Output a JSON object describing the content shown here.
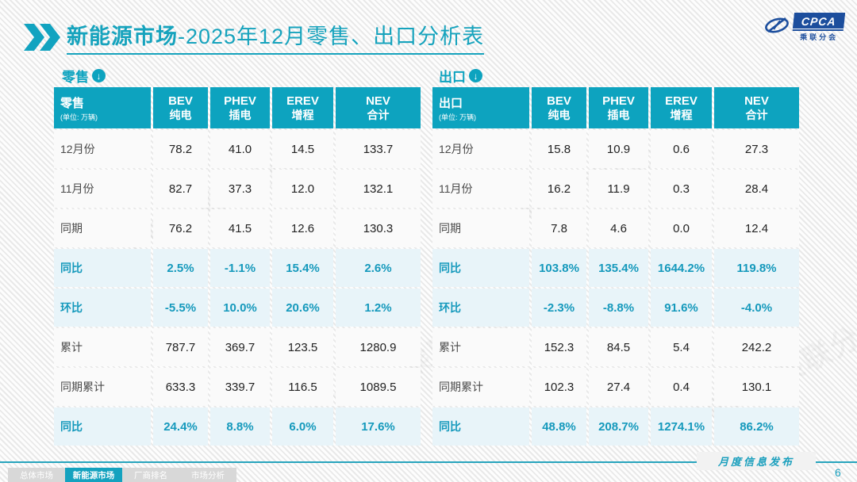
{
  "slide": {
    "title": {
      "highlight": "新能源市场",
      "rest": "-2025年12月零售、出口分析表"
    },
    "logo": {
      "acronym": "CPCA",
      "cn": "乘联分会"
    },
    "watermark": "CPCA 乘联分会",
    "footer": {
      "note": "月度信息发布",
      "page": "6"
    },
    "tabs": [
      {
        "label": "总体市场",
        "active": false
      },
      {
        "label": "新能源市场",
        "active": true
      },
      {
        "label": "厂商排名",
        "active": false
      },
      {
        "label": "市场分析",
        "active": false
      }
    ]
  },
  "icons": {
    "chevrons": "double-right-chevron",
    "section_arrow": "↓"
  },
  "colors": {
    "teal": "#0da3bf",
    "highlight_row_bg": "#e8f4f9",
    "highlight_text": "#1599bc",
    "logo_blue": "#1c4e9d"
  },
  "tables": [
    {
      "section": "零售",
      "corner": {
        "title": "零售",
        "unit": "(单位: 万辆)"
      },
      "columns": [
        {
          "en": "BEV",
          "cn": "纯电"
        },
        {
          "en": "PHEV",
          "cn": "插电"
        },
        {
          "en": "EREV",
          "cn": "增程"
        },
        {
          "en": "NEV",
          "cn": "合计"
        }
      ],
      "rows": [
        {
          "label": "12月份",
          "values": [
            "78.2",
            "41.0",
            "14.5",
            "133.7"
          ],
          "highlight": false
        },
        {
          "label": "11月份",
          "values": [
            "82.7",
            "37.3",
            "12.0",
            "132.1"
          ],
          "highlight": false
        },
        {
          "label": "同期",
          "values": [
            "76.2",
            "41.5",
            "12.6",
            "130.3"
          ],
          "highlight": false
        },
        {
          "label": "同比",
          "values": [
            "2.5%",
            "-1.1%",
            "15.4%",
            "2.6%"
          ],
          "highlight": true
        },
        {
          "label": "环比",
          "values": [
            "-5.5%",
            "10.0%",
            "20.6%",
            "1.2%"
          ],
          "highlight": true
        },
        {
          "label": "累计",
          "values": [
            "787.7",
            "369.7",
            "123.5",
            "1280.9"
          ],
          "highlight": false
        },
        {
          "label": "同期累计",
          "values": [
            "633.3",
            "339.7",
            "116.5",
            "1089.5"
          ],
          "highlight": false
        },
        {
          "label": "同比",
          "values": [
            "24.4%",
            "8.8%",
            "6.0%",
            "17.6%"
          ],
          "highlight": true
        }
      ]
    },
    {
      "section": "出口",
      "corner": {
        "title": "出口",
        "unit": "(单位: 万辆)"
      },
      "columns": [
        {
          "en": "BEV",
          "cn": "纯电"
        },
        {
          "en": "PHEV",
          "cn": "插电"
        },
        {
          "en": "EREV",
          "cn": "增程"
        },
        {
          "en": "NEV",
          "cn": "合计"
        }
      ],
      "rows": [
        {
          "label": "12月份",
          "values": [
            "15.8",
            "10.9",
            "0.6",
            "27.3"
          ],
          "highlight": false
        },
        {
          "label": "11月份",
          "values": [
            "16.2",
            "11.9",
            "0.3",
            "28.4"
          ],
          "highlight": false
        },
        {
          "label": "同期",
          "values": [
            "7.8",
            "4.6",
            "0.0",
            "12.4"
          ],
          "highlight": false
        },
        {
          "label": "同比",
          "values": [
            "103.8%",
            "135.4%",
            "1644.2%",
            "119.8%"
          ],
          "highlight": true
        },
        {
          "label": "环比",
          "values": [
            "-2.3%",
            "-8.8%",
            "91.6%",
            "-4.0%"
          ],
          "highlight": true
        },
        {
          "label": "累计",
          "values": [
            "152.3",
            "84.5",
            "5.4",
            "242.2"
          ],
          "highlight": false
        },
        {
          "label": "同期累计",
          "values": [
            "102.3",
            "27.4",
            "0.4",
            "130.1"
          ],
          "highlight": false
        },
        {
          "label": "同比",
          "values": [
            "48.8%",
            "208.7%",
            "1274.1%",
            "86.2%"
          ],
          "highlight": true
        }
      ]
    }
  ],
  "chart_data": [
    {
      "type": "table",
      "title": "零售 (单位: 万辆)",
      "columns": [
        "BEV纯电",
        "PHEV插电",
        "EREV增程",
        "NEV合计"
      ],
      "row_labels": [
        "12月份",
        "11月份",
        "同期",
        "同比",
        "环比",
        "累计",
        "同期累计",
        "同比(累计)"
      ],
      "rows": [
        [
          78.2,
          41.0,
          14.5,
          133.7
        ],
        [
          82.7,
          37.3,
          12.0,
          132.1
        ],
        [
          76.2,
          41.5,
          12.6,
          130.3
        ],
        [
          "2.5%",
          "-1.1%",
          "15.4%",
          "2.6%"
        ],
        [
          "-5.5%",
          "10.0%",
          "20.6%",
          "1.2%"
        ],
        [
          787.7,
          369.7,
          123.5,
          1280.9
        ],
        [
          633.3,
          339.7,
          116.5,
          1089.5
        ],
        [
          "24.4%",
          "8.8%",
          "6.0%",
          "17.6%"
        ]
      ]
    },
    {
      "type": "table",
      "title": "出口 (单位: 万辆)",
      "columns": [
        "BEV纯电",
        "PHEV插电",
        "EREV增程",
        "NEV合计"
      ],
      "row_labels": [
        "12月份",
        "11月份",
        "同期",
        "同比",
        "环比",
        "累计",
        "同期累计",
        "同比(累计)"
      ],
      "rows": [
        [
          15.8,
          10.9,
          0.6,
          27.3
        ],
        [
          16.2,
          11.9,
          0.3,
          28.4
        ],
        [
          7.8,
          4.6,
          0.0,
          12.4
        ],
        [
          "103.8%",
          "135.4%",
          "1644.2%",
          "119.8%"
        ],
        [
          "-2.3%",
          "-8.8%",
          "91.6%",
          "-4.0%"
        ],
        [
          152.3,
          84.5,
          5.4,
          242.2
        ],
        [
          102.3,
          27.4,
          0.4,
          130.1
        ],
        [
          "48.8%",
          "208.7%",
          "1274.1%",
          "86.2%"
        ]
      ]
    }
  ]
}
